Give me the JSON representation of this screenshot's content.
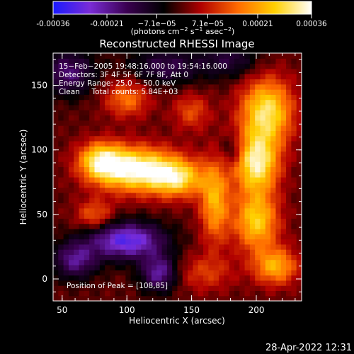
{
  "title": "Reconstructed RHESSI Image",
  "footer_date": "28-Apr-2022 12:31",
  "colorbar": {
    "tick_labels": [
      "-0.00036",
      "-0.00021",
      "−7.1e−05",
      "7.1e−05",
      "0.00021",
      "0.00036"
    ],
    "tick_values": [
      -0.00036,
      -0.00021,
      -7.1e-05,
      7.1e-05,
      0.00021,
      0.00036
    ],
    "range": [
      -0.00036,
      0.00036
    ],
    "unit_label": "(photons cm",
    "unit_sup1": "−2",
    "unit_mid": " s",
    "unit_sup2": "−1",
    "unit_mid2": " asec",
    "unit_sup3": "−2",
    "unit_end": ")",
    "colors": [
      "#1a1aff",
      "#7a2cd6",
      "#3a0050",
      "#000000",
      "#b00000",
      "#ff6a00",
      "#ffd000",
      "#ffffff"
    ]
  },
  "annotations": {
    "time": "15−Feb−2005 19:48:16.000 to 19:54:16.000",
    "detectors": "Detectors: 3F 4F 5F 6F 7F 8F, Att 0",
    "energy": "Energy Range: 25.0 − 50.0 keV",
    "clean": "Clean     Total counts: 5.84E+03",
    "peak": "Position of Peak = [108,85]"
  },
  "chart_data": {
    "type": "heatmap",
    "title": "Reconstructed RHESSI Image",
    "xlabel": "Heliocentric X (arcsec)",
    "ylabel": "Heliocentric Y (arcsec)",
    "xlim": [
      43,
      235
    ],
    "ylim": [
      -17,
      175
    ],
    "xticks": [
      50,
      100,
      150,
      200
    ],
    "yticks": [
      0,
      50,
      100,
      150
    ],
    "value_range": [
      -0.00036,
      0.00036
    ],
    "peak_position": [
      108,
      85
    ],
    "sources": [
      {
        "x": 108,
        "y": 85,
        "sx": 22,
        "sy": 12,
        "amp": 0.00036
      },
      {
        "x": 80,
        "y": 92,
        "sx": 12,
        "sy": 10,
        "amp": 0.00026
      },
      {
        "x": 140,
        "y": 78,
        "sx": 14,
        "sy": 10,
        "amp": 0.00024
      },
      {
        "x": 168,
        "y": 60,
        "sx": 8,
        "sy": 22,
        "amp": 0.00022
      },
      {
        "x": 208,
        "y": 130,
        "sx": 14,
        "sy": 18,
        "amp": 0.0003
      },
      {
        "x": 200,
        "y": 90,
        "sx": 12,
        "sy": 16,
        "amp": 0.00032
      },
      {
        "x": 200,
        "y": 45,
        "sx": 12,
        "sy": 16,
        "amp": 0.00026
      },
      {
        "x": 215,
        "y": 10,
        "sx": 12,
        "sy": 10,
        "amp": 0.00022
      },
      {
        "x": 150,
        "y": 130,
        "sx": 10,
        "sy": 10,
        "amp": 0.00012
      },
      {
        "x": 100,
        "y": 140,
        "sx": 12,
        "sy": 10,
        "amp": 0.00016
      },
      {
        "x": 75,
        "y": 50,
        "sx": 10,
        "sy": 8,
        "amp": 0.00014
      },
      {
        "x": 160,
        "y": 5,
        "sx": 16,
        "sy": 10,
        "amp": 0.0001
      },
      {
        "x": 100,
        "y": 30,
        "sx": 20,
        "sy": 10,
        "amp": -0.0003
      },
      {
        "x": 60,
        "y": 15,
        "sx": 12,
        "sy": 10,
        "amp": -0.0002
      },
      {
        "x": 55,
        "y": 160,
        "sx": 14,
        "sy": 12,
        "amp": -0.00018
      },
      {
        "x": 130,
        "y": 165,
        "sx": 20,
        "sy": 10,
        "amp": -0.00014
      },
      {
        "x": 180,
        "y": 170,
        "sx": 16,
        "sy": 10,
        "amp": -0.00012
      },
      {
        "x": 125,
        "y": 5,
        "sx": 10,
        "sy": 10,
        "amp": -0.00022
      },
      {
        "x": 182,
        "y": 100,
        "sx": 6,
        "sy": 8,
        "amp": -0.0001
      }
    ]
  }
}
